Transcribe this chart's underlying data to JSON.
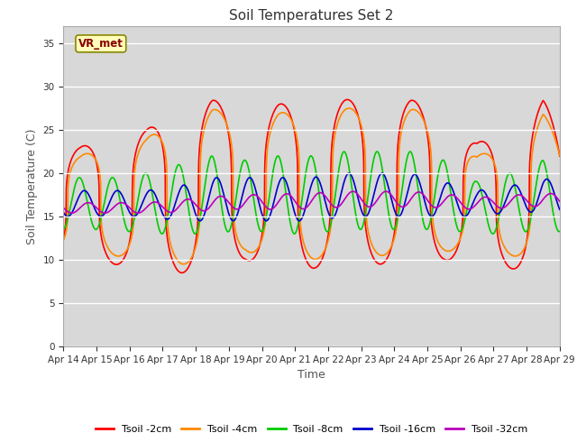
{
  "title": "Soil Temperatures Set 2",
  "xlabel": "Time",
  "ylabel": "Soil Temperature (C)",
  "ylim": [
    0,
    37
  ],
  "yticks": [
    0,
    5,
    10,
    15,
    20,
    25,
    30,
    35
  ],
  "plot_bg_color": "#d8d8d8",
  "series": [
    {
      "label": "Tsoil -2cm",
      "color": "#ff0000",
      "linewidth": 1.2
    },
    {
      "label": "Tsoil -4cm",
      "color": "#ff8800",
      "linewidth": 1.2
    },
    {
      "label": "Tsoil -8cm",
      "color": "#00cc00",
      "linewidth": 1.2
    },
    {
      "label": "Tsoil -16cm",
      "color": "#0000cc",
      "linewidth": 1.2
    },
    {
      "label": "Tsoil -32cm",
      "color": "#bb00bb",
      "linewidth": 1.2
    }
  ],
  "annotation_text": "VR_met",
  "xtick_days": [
    14,
    15,
    16,
    17,
    18,
    19,
    20,
    21,
    22,
    23,
    24,
    25,
    26,
    27,
    28,
    29
  ],
  "xtick_labels": [
    "Apr 14",
    "Apr 15",
    "Apr 16",
    "Apr 17",
    "Apr 18",
    "Apr 19",
    "Apr 20",
    "Apr 21",
    "Apr 22",
    "Apr 23",
    "Apr 24",
    "Apr 25",
    "Apr 26",
    "Apr 27",
    "Apr 28",
    "Apr 29"
  ]
}
